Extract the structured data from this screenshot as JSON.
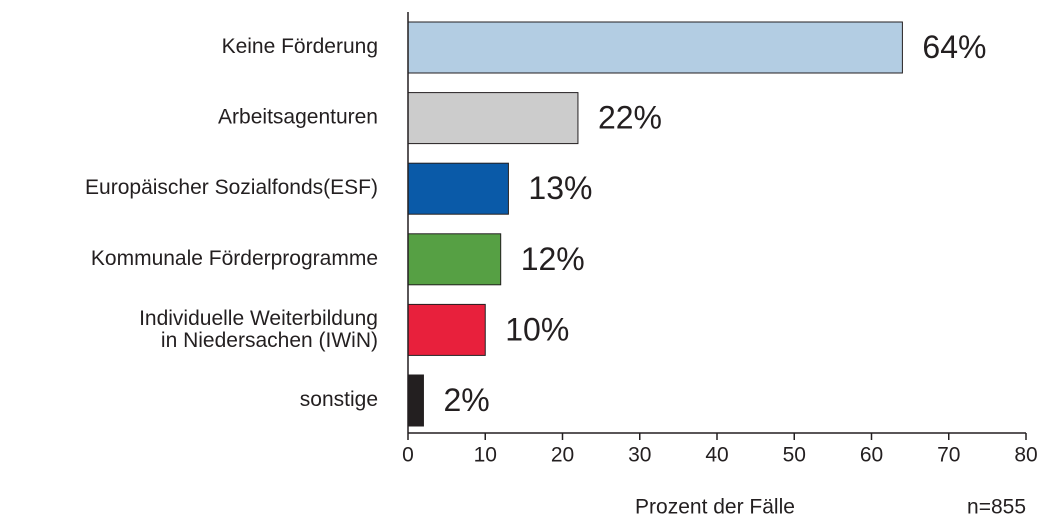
{
  "chart_data": {
    "type": "barh",
    "categories": [
      "Keine Förderung",
      "Arbeitsagenturen",
      "Europäischer Sozialfonds(ESF)",
      "Kommunale Förderprogramme",
      "Individuelle Weiterbildung\nin Niedersachen (IWiN)",
      "sonstige"
    ],
    "values": [
      64,
      22,
      13,
      12,
      10,
      2
    ],
    "value_labels": [
      "64%",
      "22%",
      "13%",
      "12%",
      "10%",
      "2%"
    ],
    "colors": [
      "#b3cde3",
      "#cccccc",
      "#0a5aa8",
      "#56a044",
      "#e8203c",
      "#231f20"
    ],
    "xlim": [
      0,
      80
    ],
    "xticks": [
      0,
      10,
      20,
      30,
      40,
      50,
      60,
      70,
      80
    ],
    "xlabel": "Prozent der Fälle",
    "note": "n=855"
  }
}
